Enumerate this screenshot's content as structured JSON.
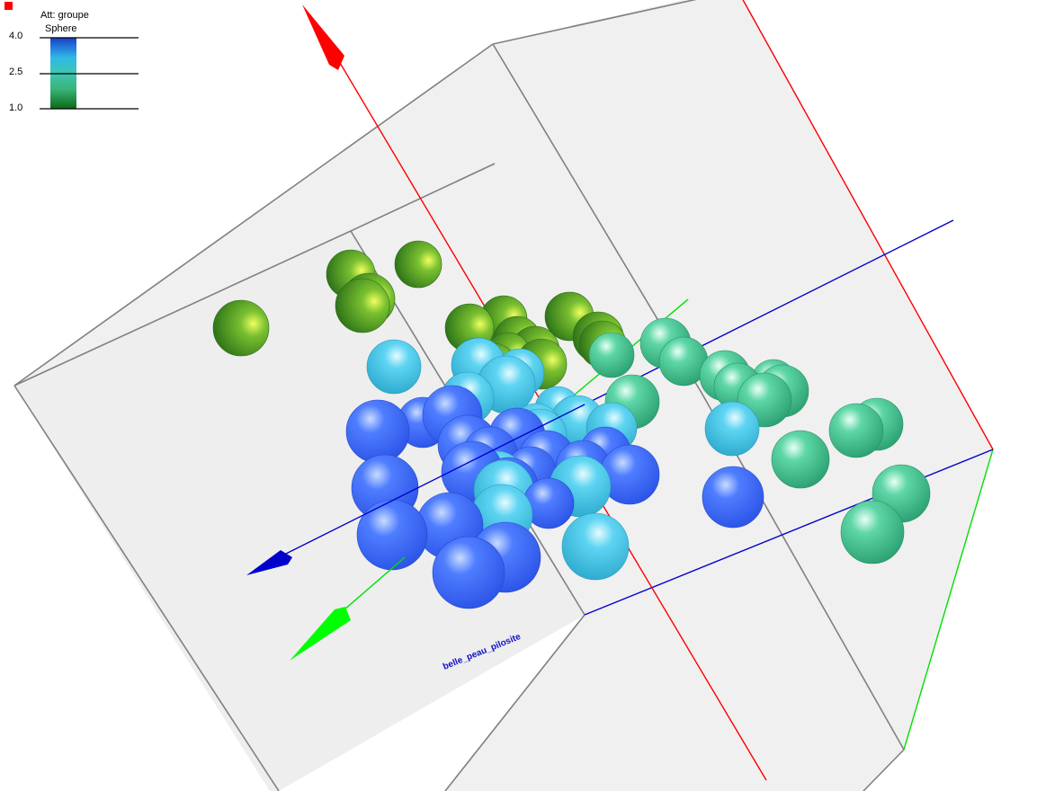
{
  "legend": {
    "title": "Att: groupe",
    "subtitle": "Sphere",
    "ticks": [
      "4.0",
      "2.5",
      "1.0"
    ],
    "marker_color": "#ff0000"
  },
  "axis_label": "belle_peau_pilosite",
  "colors": {
    "x_axis": "#ff0000",
    "y_axis": "#00e000",
    "z_axis": "#0000cc",
    "box_edge": "#808080",
    "box_face": "#e6e6e6"
  },
  "chart_data": {
    "type": "scatter",
    "title": "",
    "color_attribute": "groupe",
    "color_range": [
      1.0,
      4.0
    ],
    "groups": [
      {
        "value": 1,
        "color": "#4a9a22",
        "count": 16
      },
      {
        "value": 2,
        "color": "#3cc88e",
        "count": 14
      },
      {
        "value": 3,
        "color": "#40c0e6",
        "count": 16
      },
      {
        "value": 4,
        "color": "#3366ff",
        "count": 20
      }
    ]
  }
}
